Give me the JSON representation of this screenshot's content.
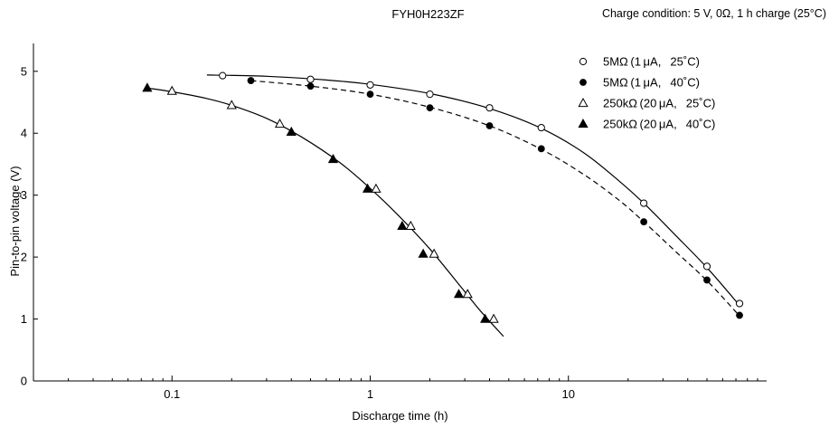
{
  "header": {
    "title": "FYH0H223ZF",
    "condition": "Charge condition: 5 V, 0Ω, 1 h charge (25°C)"
  },
  "chart_data": {
    "type": "scatter",
    "title": "FYH0H223ZF",
    "subtitle": "Charge condition: 5 V, 0Ω, 1 h charge (25°C)",
    "xlabel": "Discharge time (h)",
    "ylabel": "Pin-to-pin voltage (V)",
    "x_scale": "log",
    "xlim": [
      0.02,
      100
    ],
    "ylim": [
      0,
      5.45
    ],
    "x_ticks": [
      {
        "value": 0.1,
        "label": "0.1"
      },
      {
        "value": 1,
        "label": "1"
      },
      {
        "value": 10,
        "label": "10"
      }
    ],
    "y_ticks": [
      {
        "value": 0,
        "label": "0"
      },
      {
        "value": 1,
        "label": "1"
      },
      {
        "value": 2,
        "label": "2"
      },
      {
        "value": 3,
        "label": "3"
      },
      {
        "value": 4,
        "label": "4"
      },
      {
        "value": 5,
        "label": "5"
      }
    ],
    "grid": false,
    "legend_position": "top-right",
    "series": [
      {
        "name": "5MΩ (1 μA,  25˚C)",
        "marker": "circle-open",
        "line": "solid",
        "points": [
          [
            0.18,
            4.93
          ],
          [
            0.5,
            4.87
          ],
          [
            1.0,
            4.78
          ],
          [
            2.0,
            4.63
          ],
          [
            4.0,
            4.41
          ],
          [
            7.3,
            4.09
          ],
          [
            24,
            2.87
          ],
          [
            50,
            1.85
          ],
          [
            73,
            1.25
          ]
        ],
        "curve": [
          [
            0.15,
            4.94
          ],
          [
            0.3,
            4.92
          ],
          [
            0.6,
            4.86
          ],
          [
            1.0,
            4.79
          ],
          [
            2.0,
            4.64
          ],
          [
            4.0,
            4.4
          ],
          [
            7.3,
            4.08
          ],
          [
            12,
            3.68
          ],
          [
            18,
            3.23
          ],
          [
            24,
            2.87
          ],
          [
            35,
            2.34
          ],
          [
            50,
            1.83
          ],
          [
            73,
            1.22
          ]
        ]
      },
      {
        "name": "5MΩ (1 μA,  40˚C)",
        "marker": "circle-filled",
        "line": "dashed",
        "points": [
          [
            0.25,
            4.85
          ],
          [
            0.5,
            4.76
          ],
          [
            1.0,
            4.63
          ],
          [
            2.0,
            4.41
          ],
          [
            4.0,
            4.12
          ],
          [
            7.3,
            3.75
          ],
          [
            24,
            2.57
          ],
          [
            50,
            1.63
          ],
          [
            73,
            1.06
          ]
        ],
        "curve": [
          [
            0.25,
            4.85
          ],
          [
            0.5,
            4.76
          ],
          [
            1.0,
            4.63
          ],
          [
            2.0,
            4.42
          ],
          [
            4.0,
            4.12
          ],
          [
            7.3,
            3.74
          ],
          [
            12,
            3.33
          ],
          [
            18,
            2.92
          ],
          [
            24,
            2.57
          ],
          [
            35,
            2.08
          ],
          [
            50,
            1.62
          ],
          [
            73,
            1.05
          ]
        ]
      },
      {
        "name": "250kΩ (20 μA,  25˚C)",
        "marker": "triangle-open",
        "line": "solid",
        "points": [
          [
            0.1,
            4.68
          ],
          [
            0.2,
            4.45
          ],
          [
            0.35,
            4.15
          ],
          [
            1.07,
            3.1
          ],
          [
            1.6,
            2.5
          ],
          [
            2.1,
            2.05
          ],
          [
            3.1,
            1.4
          ],
          [
            4.2,
            1.0
          ]
        ],
        "curve": [
          [
            0.075,
            4.73
          ],
          [
            0.1,
            4.67
          ],
          [
            0.15,
            4.56
          ],
          [
            0.2,
            4.45
          ],
          [
            0.3,
            4.24
          ],
          [
            0.45,
            3.94
          ],
          [
            0.7,
            3.53
          ],
          [
            1.0,
            3.11
          ],
          [
            1.4,
            2.66
          ],
          [
            2.0,
            2.13
          ],
          [
            2.8,
            1.56
          ],
          [
            3.6,
            1.13
          ],
          [
            4.7,
            0.72
          ]
        ]
      },
      {
        "name": "250kΩ (20 μA,  40˚C)",
        "marker": "triangle-filled",
        "line": "solid",
        "points": [
          [
            0.075,
            4.73
          ],
          [
            0.4,
            4.02
          ],
          [
            0.65,
            3.58
          ],
          [
            0.97,
            3.1
          ],
          [
            1.45,
            2.5
          ],
          [
            1.85,
            2.05
          ],
          [
            2.8,
            1.4
          ],
          [
            3.8,
            1.0
          ]
        ],
        "curve": []
      }
    ]
  }
}
